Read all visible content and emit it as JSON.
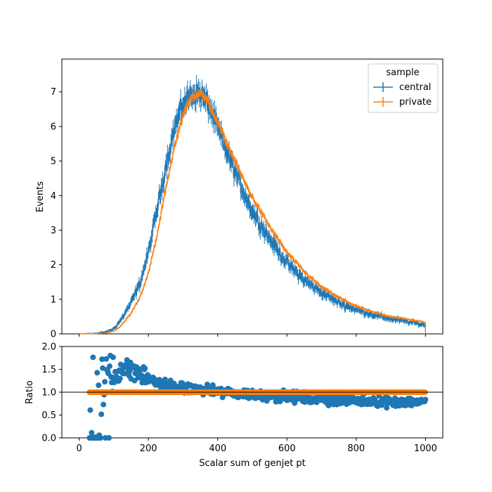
{
  "chart_data": {
    "type": "line",
    "top_panel": {
      "ylabel": "Events",
      "xlim": [
        -50,
        1050
      ],
      "ylim": [
        0,
        7.95
      ],
      "yticks": [
        0,
        1,
        2,
        3,
        4,
        5,
        6,
        7
      ],
      "xticks": [
        0,
        200,
        400,
        600,
        800,
        1000
      ],
      "legend": {
        "title": "sample",
        "placement": "top-right"
      },
      "series": [
        {
          "name": "central",
          "color": "#1f77b4",
          "style": "histogram with vertical error bars (noisy)",
          "x": [
            0,
            50,
            80,
            100,
            120,
            150,
            175,
            200,
            225,
            250,
            275,
            300,
            325,
            350,
            375,
            400,
            425,
            450,
            475,
            500,
            550,
            600,
            650,
            700,
            750,
            800,
            850,
            900,
            950,
            1000
          ],
          "y": [
            0.0,
            0.02,
            0.06,
            0.15,
            0.4,
            0.9,
            1.45,
            2.35,
            3.6,
            4.85,
            5.95,
            6.65,
            6.95,
            6.95,
            6.6,
            5.95,
            5.3,
            4.7,
            4.1,
            3.55,
            2.75,
            2.05,
            1.55,
            1.2,
            0.9,
            0.7,
            0.55,
            0.43,
            0.35,
            0.25
          ]
        },
        {
          "name": "private",
          "color": "#ff7f0e",
          "style": "histogram with vertical error bars",
          "x": [
            0,
            50,
            80,
            100,
            120,
            150,
            175,
            200,
            225,
            250,
            275,
            300,
            325,
            350,
            375,
            400,
            425,
            450,
            475,
            500,
            550,
            600,
            650,
            700,
            750,
            800,
            850,
            900,
            950,
            1000
          ],
          "y": [
            0.0,
            0.01,
            0.03,
            0.08,
            0.22,
            0.6,
            1.05,
            1.75,
            2.85,
            4.2,
            5.4,
            6.35,
            6.85,
            7.0,
            6.65,
            6.1,
            5.55,
            5.0,
            4.45,
            3.95,
            3.1,
            2.35,
            1.8,
            1.35,
            1.05,
            0.8,
            0.62,
            0.5,
            0.42,
            0.33
          ]
        }
      ]
    },
    "bottom_panel": {
      "type": "scatter",
      "ylabel": "Ratio",
      "xlabel": "Scalar sum of genjet pt",
      "xlim": [
        -50,
        1050
      ],
      "ylim": [
        0,
        2.0
      ],
      "yticks": [
        0.0,
        0.5,
        1.0,
        1.5,
        2.0
      ],
      "ytick_labels": [
        "0.0",
        "0.5",
        "1.0",
        "1.5",
        "2.0"
      ],
      "xticks": [
        0,
        200,
        400,
        600,
        800,
        1000
      ],
      "reference_line": 1.0,
      "series": [
        {
          "name": "central",
          "color": "#1f77b4",
          "trend_x": [
            40,
            60,
            80,
            100,
            120,
            150,
            175,
            200,
            250,
            300,
            350,
            400,
            500,
            600,
            700,
            800,
            900,
            1000
          ],
          "trend_y": [
            0.0,
            0.4,
            1.2,
            1.35,
            1.5,
            1.5,
            1.4,
            1.3,
            1.15,
            1.08,
            1.05,
            1.0,
            0.95,
            0.9,
            0.85,
            0.82,
            0.8,
            0.78
          ]
        },
        {
          "name": "private",
          "color": "#ff7f0e",
          "x_range": [
            30,
            1000
          ],
          "constant": 1.0
        }
      ]
    }
  }
}
